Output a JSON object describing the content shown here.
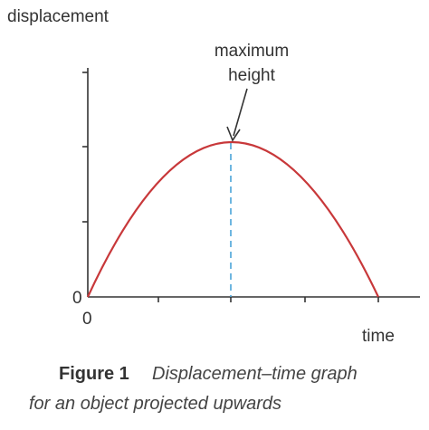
{
  "graph": {
    "y_axis_label": "displacement",
    "x_axis_label": "time",
    "y_origin_label": "0",
    "x_origin_label": "0",
    "annotation": [
      "maximum",
      "height"
    ]
  },
  "caption": {
    "figure": "Figure 1",
    "lines": [
      "Displacement–time graph",
      "for an object projected upwards"
    ]
  }
}
